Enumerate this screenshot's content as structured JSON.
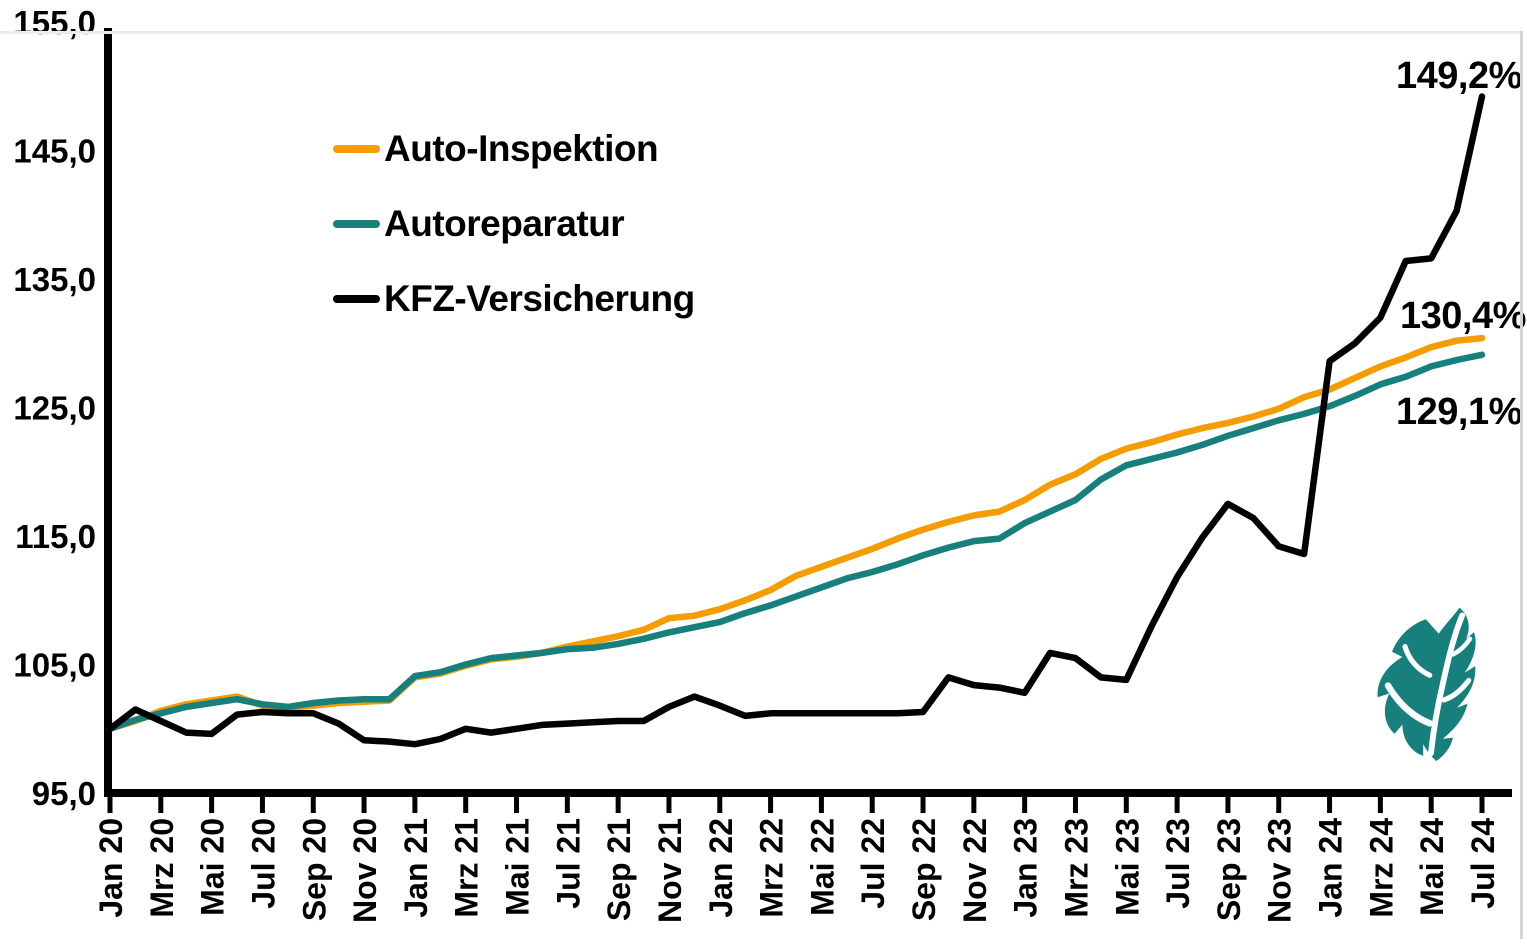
{
  "chart_data": {
    "type": "line",
    "title": "",
    "grid": false,
    "legend_position": "top-left",
    "ylim": [
      95,
      155
    ],
    "y_ticks": [
      {
        "label": "155,0",
        "value": 155
      },
      {
        "label": "145,0",
        "value": 145
      },
      {
        "label": "135,0",
        "value": 135
      },
      {
        "label": "125,0",
        "value": 125
      },
      {
        "label": "115,0",
        "value": 115
      },
      {
        "label": "105,0",
        "value": 105
      },
      {
        "label": "95,0",
        "value": 95
      }
    ],
    "x": [
      "Jan 20",
      "Feb 20",
      "Mrz 20",
      "Apr 20",
      "Mai 20",
      "Jun 20",
      "Jul 20",
      "Aug 20",
      "Sep 20",
      "Okt 20",
      "Nov 20",
      "Dez 20",
      "Jan 21",
      "Feb 21",
      "Mrz 21",
      "Apr 21",
      "Mai 21",
      "Jun 21",
      "Jul 21",
      "Aug 21",
      "Sep 21",
      "Okt 21",
      "Nov 21",
      "Dez 21",
      "Jan 22",
      "Feb 22",
      "Mrz 22",
      "Apr 22",
      "Mai 22",
      "Jun 22",
      "Jul 22",
      "Aug 22",
      "Sep 22",
      "Okt 22",
      "Nov 22",
      "Dez 22",
      "Jan 23",
      "Feb 23",
      "Mrz 23",
      "Apr 23",
      "Mai 23",
      "Jun 23",
      "Jul 23",
      "Aug 23",
      "Sep 23",
      "Okt 23",
      "Nov 23",
      "Dez 23",
      "Jan 24",
      "Feb 24",
      "Mrz 24",
      "Apr 24",
      "Mai 24",
      "Jun 24",
      "Jul 24"
    ],
    "x_tick_labels": [
      "Jan 20",
      "Mrz 20",
      "Mai 20",
      "Jul 20",
      "Sep 20",
      "Nov 20",
      "Jan 21",
      "Mrz 21",
      "Mai 21",
      "Jul 21",
      "Sep 21",
      "Nov 21",
      "Jan 22",
      "Mrz 22",
      "Mai 22",
      "Jul 22",
      "Sep 22",
      "Nov 22",
      "Jan 23",
      "Mrz 23",
      "Mai 23",
      "Jul 23",
      "Sep 23",
      "Nov 23",
      "Jan 24",
      "Mrz 24",
      "Mai 24",
      "Jul 24"
    ],
    "series": [
      {
        "name": "Auto-Inspektion",
        "color": "#F59C00",
        "end_label": "130,4%",
        "values": [
          100.0,
          100.6,
          101.4,
          101.9,
          102.2,
          102.5,
          101.8,
          101.6,
          101.8,
          102.0,
          102.1,
          102.2,
          104.0,
          104.3,
          104.9,
          105.4,
          105.6,
          105.9,
          106.4,
          106.8,
          107.2,
          107.7,
          108.6,
          108.8,
          109.3,
          110.0,
          110.8,
          111.9,
          112.6,
          113.3,
          114.0,
          114.8,
          115.5,
          116.1,
          116.6,
          116.9,
          117.8,
          119.0,
          119.8,
          121.0,
          121.8,
          122.3,
          122.9,
          123.4,
          123.8,
          124.3,
          124.9,
          125.8,
          126.4,
          127.3,
          128.2,
          128.9,
          129.7,
          130.2,
          130.4
        ]
      },
      {
        "name": "Autoreparatur",
        "color": "#17807D",
        "end_label": "129,1%",
        "values": [
          100.0,
          100.7,
          101.2,
          101.7,
          102.0,
          102.3,
          101.9,
          101.7,
          102.0,
          102.2,
          102.3,
          102.3,
          104.1,
          104.4,
          105.0,
          105.5,
          105.7,
          105.9,
          106.2,
          106.3,
          106.6,
          107.0,
          107.5,
          107.9,
          108.3,
          109.0,
          109.6,
          110.3,
          111.0,
          111.7,
          112.2,
          112.8,
          113.5,
          114.1,
          114.6,
          114.8,
          116.0,
          116.9,
          117.8,
          119.4,
          120.5,
          121.0,
          121.5,
          122.1,
          122.8,
          123.4,
          124.0,
          124.5,
          125.1,
          125.9,
          126.8,
          127.4,
          128.2,
          128.7,
          129.1
        ]
      },
      {
        "name": "KFZ-Versicherung",
        "color": "#000000",
        "end_label": "149,2%",
        "values": [
          100.0,
          101.5,
          100.6,
          99.7,
          99.6,
          101.1,
          101.3,
          101.2,
          101.2,
          100.4,
          99.1,
          99.0,
          98.8,
          99.2,
          100.0,
          99.7,
          100.0,
          100.3,
          100.4,
          100.5,
          100.6,
          100.6,
          101.7,
          102.5,
          101.8,
          101.0,
          101.2,
          101.2,
          101.2,
          101.2,
          101.2,
          101.2,
          101.3,
          104.0,
          103.4,
          103.2,
          102.8,
          105.9,
          105.5,
          104.0,
          103.8,
          108.0,
          111.8,
          114.9,
          117.5,
          116.4,
          114.2,
          113.6,
          128.6,
          130.0,
          132.0,
          136.4,
          136.6,
          140.3,
          149.2
        ]
      }
    ]
  },
  "branding": {
    "logo": "teal-leaf-logo",
    "color": "#17807D"
  }
}
